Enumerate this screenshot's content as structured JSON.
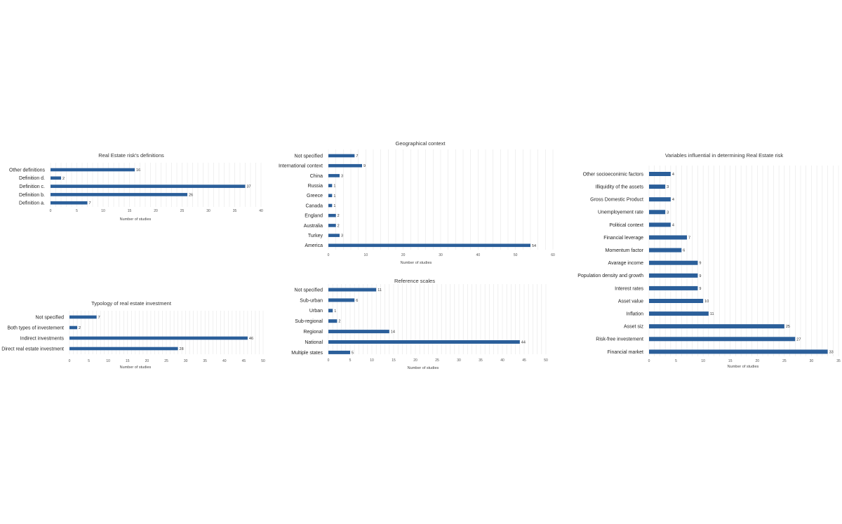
{
  "chart_data": [
    {
      "id": "defs",
      "type": "bar",
      "orientation": "horizontal",
      "title": "Real Estate risk's definitions",
      "xlabel": "Number of studies",
      "ylabel": "",
      "xlim": [
        0,
        40
      ],
      "ticks": [
        "0",
        "5",
        "10",
        "15",
        "20",
        "25",
        "30",
        "35",
        "40"
      ],
      "categories": [
        "Other definitions",
        "Definition d.",
        "Definition c.",
        "Definition b.",
        "Definition a."
      ],
      "values": [
        16,
        2,
        37,
        26,
        7
      ],
      "data_labels": [
        "16",
        "2",
        "37",
        "26",
        "7"
      ],
      "grid": true
    },
    {
      "id": "geo",
      "type": "bar",
      "orientation": "horizontal",
      "title": "Geographical context",
      "xlabel": "Number of studies",
      "ylabel": "",
      "xlim": [
        0,
        60
      ],
      "ticks": [
        "0",
        "10",
        "20",
        "30",
        "40",
        "50",
        "60"
      ],
      "categories": [
        "Not specified",
        "International context",
        "China",
        "Russia",
        "Greece",
        "Canada",
        "England",
        "Australia",
        "Turkey",
        "America"
      ],
      "values": [
        7,
        9,
        3,
        1,
        1,
        1,
        2,
        2,
        3,
        54
      ],
      "data_labels": [
        "7",
        "9",
        "3",
        "1",
        "1",
        "1",
        "2",
        "2",
        "3",
        "54"
      ],
      "grid": true
    },
    {
      "id": "vars",
      "type": "bar",
      "orientation": "horizontal",
      "title": "Variables influential in determining Real Estate risk",
      "xlabel": "Number of studies",
      "ylabel": "",
      "xlim": [
        0,
        35
      ],
      "ticks": [
        "0",
        "5",
        "10",
        "15",
        "20",
        "25",
        "30",
        "35"
      ],
      "categories": [
        "Other socioeconimic factors",
        "Illiquidity of the assets",
        "Gross Domestic Product",
        "Unemployement rate",
        "Political context",
        "Financial leverage",
        "Momentum factor",
        "Avarage income",
        "Population density and growth",
        "Interest rates",
        "Asset value",
        "Inflation",
        "Asset siz",
        "Risk-free investement",
        "Financial market"
      ],
      "values": [
        4,
        3,
        4,
        3,
        4,
        7,
        6,
        9,
        9,
        9,
        10,
        11,
        25,
        27,
        33
      ],
      "data_labels": [
        "4",
        "3",
        "4",
        "3",
        "4",
        "7",
        "6",
        "9",
        "9",
        "9",
        "10",
        "11",
        "25",
        "27",
        "33"
      ],
      "grid": true
    },
    {
      "id": "typology",
      "type": "bar",
      "orientation": "horizontal",
      "title": "Typology of real estate investment",
      "xlabel": "Number of studies",
      "ylabel": "",
      "xlim": [
        0,
        50
      ],
      "ticks": [
        "0",
        "5",
        "10",
        "15",
        "20",
        "25",
        "30",
        "35",
        "40",
        "45",
        "50"
      ],
      "categories": [
        "Not specified",
        "Both types of investement",
        "Indirect investments",
        "Direct real estate investment"
      ],
      "values": [
        7,
        2,
        46,
        28
      ],
      "data_labels": [
        "7",
        "2",
        "46",
        "28"
      ],
      "grid": true
    },
    {
      "id": "scales",
      "type": "bar",
      "orientation": "horizontal",
      "title": "Reference scales",
      "xlabel": "Number of studies",
      "ylabel": "",
      "xlim": [
        0,
        50
      ],
      "ticks": [
        "0",
        "5",
        "10",
        "15",
        "20",
        "25",
        "30",
        "35",
        "40",
        "45",
        "50"
      ],
      "categories": [
        "Not specified",
        "Sub-urban",
        "Urban",
        "Sub-regional",
        "Regional",
        "National",
        "Multiple states"
      ],
      "values": [
        11,
        6,
        1,
        2,
        14,
        44,
        5
      ],
      "data_labels": [
        "11",
        "6",
        "1",
        "2",
        "14",
        "44",
        "5"
      ],
      "grid": true
    }
  ],
  "colors": {
    "bar": "#2b5f9a",
    "grid": "#e6e6e6"
  }
}
